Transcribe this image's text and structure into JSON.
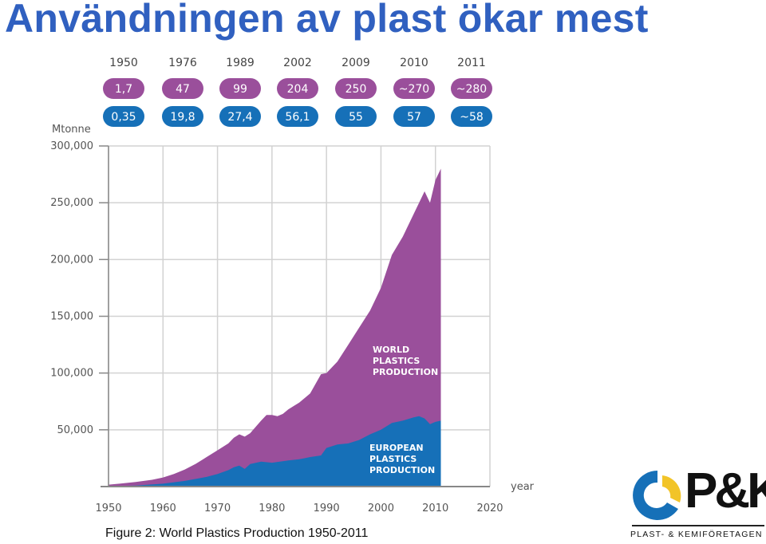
{
  "title": "Användningen av plast ökar mest",
  "caption": "Figure 2: World Plastics Production 1950-2011",
  "logo": {
    "wordmark": "P&K",
    "tagline": "PLAST- & KEMIFÖRETAGEN",
    "colors": {
      "blue": "#1670b8",
      "yellow": "#f2c428",
      "black": "#111111"
    }
  },
  "colors": {
    "title": "#3060c0",
    "world": "#9a4f9b",
    "europe": "#1670b8",
    "pill_world": "#9a4f9b",
    "pill_europe": "#1670b8",
    "axis_text": "#555555",
    "grid": "#d2d2d2"
  },
  "badges": {
    "years": [
      "1950",
      "1976",
      "1989",
      "2002",
      "2009",
      "2010",
      "2011"
    ],
    "world": [
      "1,7",
      "47",
      "99",
      "204",
      "250",
      "~270",
      "~280"
    ],
    "europe": [
      "0,35",
      "19,8",
      "27,4",
      "56,1",
      "55",
      "57",
      "~58"
    ]
  },
  "chart_data": {
    "type": "area",
    "ylabel": "Mtonne",
    "xlabel": "year",
    "xlim": [
      1950,
      2020
    ],
    "ylim": [
      0,
      300000
    ],
    "x_ticks": [
      "1950",
      "1960",
      "1970",
      "1980",
      "1990",
      "2000",
      "2010",
      "2020"
    ],
    "y_ticks": [
      "300,000",
      "250,000",
      "200,000",
      "150,000",
      "100,000",
      "50,000"
    ],
    "grid": true,
    "series": [
      {
        "name": "WORLD PLASTICS PRODUCTION",
        "x": [
          1950,
          1952,
          1955,
          1958,
          1960,
          1962,
          1964,
          1966,
          1968,
          1970,
          1972,
          1973,
          1974,
          1975,
          1976,
          1978,
          1979,
          1980,
          1981,
          1982,
          1983,
          1985,
          1987,
          1989,
          1990,
          1992,
          1994,
          1996,
          1998,
          2000,
          2002,
          2004,
          2006,
          2007,
          2008,
          2009,
          2010,
          2011
        ],
        "y": [
          1700,
          2500,
          4000,
          6000,
          8000,
          11000,
          15000,
          20000,
          26000,
          32000,
          38000,
          43000,
          46000,
          44000,
          47000,
          58000,
          63000,
          63000,
          62000,
          64000,
          68000,
          74000,
          82000,
          99000,
          100000,
          110000,
          125000,
          140000,
          155000,
          175000,
          204000,
          220000,
          240000,
          250000,
          260000,
          250000,
          270000,
          280000
        ]
      },
      {
        "name": "EUROPEAN PLASTICS PRODUCTION",
        "x": [
          1950,
          1955,
          1960,
          1964,
          1968,
          1970,
          1972,
          1973,
          1974,
          1975,
          1976,
          1978,
          1980,
          1983,
          1985,
          1987,
          1989,
          1990,
          1992,
          1994,
          1996,
          1998,
          2000,
          2002,
          2004,
          2006,
          2007,
          2008,
          2009,
          2010,
          2011
        ],
        "y": [
          350,
          900,
          2500,
          5000,
          8500,
          11000,
          14500,
          17000,
          18500,
          15500,
          19800,
          22000,
          21000,
          23000,
          24000,
          26000,
          27400,
          34000,
          37000,
          38000,
          41000,
          46000,
          50000,
          56100,
          58000,
          61000,
          62000,
          60000,
          55000,
          57000,
          58000
        ]
      }
    ],
    "annotations": [
      "WORLD PLASTICS PRODUCTION",
      "EUROPEAN PLASTICS PRODUCTION"
    ]
  }
}
